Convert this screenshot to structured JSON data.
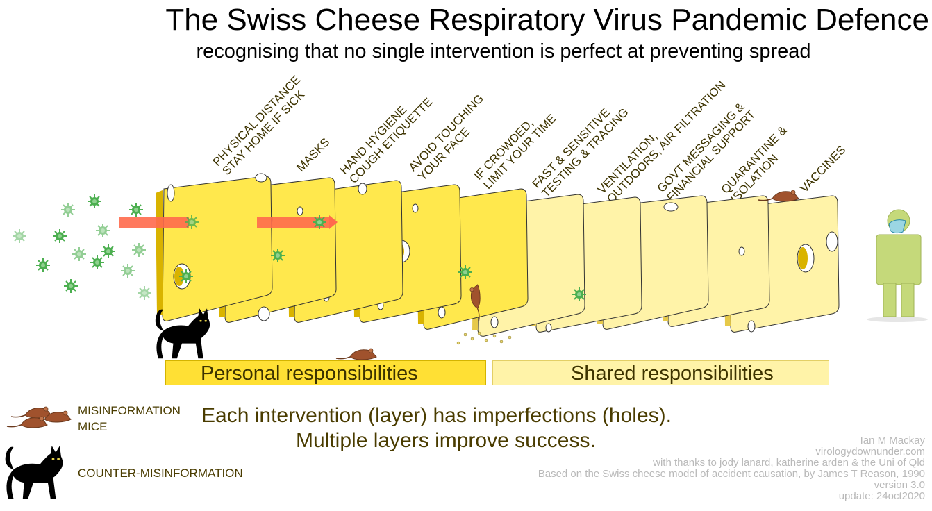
{
  "title": "The Swiss Cheese Respiratory Virus Pandemic Defence",
  "subtitle": "recognising that no single intervention is perfect at preventing spread",
  "layers": [
    {
      "lines": [
        "Physical distance",
        "stay home if sick"
      ]
    },
    {
      "lines": [
        "Masks"
      ]
    },
    {
      "lines": [
        "Hand hygiene",
        "cough etiquette"
      ]
    },
    {
      "lines": [
        "Avoid touching",
        "your face"
      ]
    },
    {
      "lines": [
        "If crowded,",
        "limit your time"
      ]
    },
    {
      "lines": [
        "Fast & sensitive",
        "testing & tracing"
      ]
    },
    {
      "lines": [
        "Ventilation,",
        "outdoors, air filtration"
      ]
    },
    {
      "lines": [
        "Govt messaging &",
        "financial support"
      ]
    },
    {
      "lines": [
        "Quarantine &",
        "isolation"
      ]
    },
    {
      "lines": [
        "Vaccines"
      ]
    }
  ],
  "banners": {
    "personal": "Personal responsibilities",
    "shared": "Shared responsibilities"
  },
  "legend": {
    "mice_line1": "MISINFORMATION",
    "mice_line2": "MICE",
    "cat": "COUNTER-MISINFORMATION"
  },
  "caption": {
    "line1": "Each intervention (layer) has imperfections (holes).",
    "line2": "Multiple layers improve success."
  },
  "credits": [
    "Ian M Mackay",
    "virologydownunder.com",
    "with thanks to jody lanard, katherine arden & the Uni of Qld",
    "Based on the Swiss cheese model of accident causation, by James T Reason, 1990",
    "version 3.0",
    "update: 24oct2020"
  ],
  "colors": {
    "personal_cheese": "#ffe84d",
    "shared_cheese": "#fff3a8",
    "hole": "#d9b300",
    "virus": "#4caf50",
    "arrow": "#ff6a4d",
    "mouse": "#a0522d",
    "cat": "#000000",
    "person": "#c5d97a"
  },
  "icons": [
    "virus-icon",
    "mouse-icon",
    "cat-icon",
    "person-icon",
    "mask-icon",
    "arrow-icon"
  ]
}
